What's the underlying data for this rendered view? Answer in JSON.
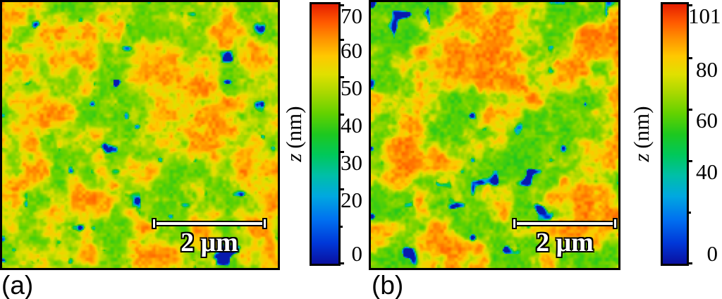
{
  "figure": {
    "background": "#ffffff",
    "frame_color": "#000000"
  },
  "chart_data": [
    {
      "type": "heatmap",
      "panel_label": "(a)",
      "scale_bar": {
        "label": "2 μm"
      },
      "colorbar": {
        "axis_label_z": "z",
        "axis_label_units": "(nm)",
        "legend_position": "right",
        "scale_top_nm": 69.5,
        "zlim_nm": [
          0,
          70
        ],
        "ticks": [
          {
            "value": 70,
            "label": "70"
          },
          {
            "value": 60,
            "label": "60"
          },
          {
            "value": 50,
            "label": "50"
          },
          {
            "value": 40,
            "label": "40"
          },
          {
            "value": 30,
            "label": "30"
          },
          {
            "value": 20,
            "label": "20"
          },
          {
            "value": 10,
            "label": ""
          },
          {
            "value": 0,
            "label": "0"
          }
        ]
      }
    },
    {
      "type": "heatmap",
      "panel_label": "(b)",
      "scale_bar": {
        "label": "2 μm"
      },
      "colorbar": {
        "axis_label_z": "z",
        "axis_label_units": "(nm)",
        "legend_position": "right",
        "scale_top_nm": 101,
        "zlim_nm": [
          0,
          101
        ],
        "ticks": [
          {
            "value": 101,
            "label": "101"
          },
          {
            "value": 80,
            "label": "80"
          },
          {
            "value": 60,
            "label": "60"
          },
          {
            "value": 40,
            "label": "40"
          },
          {
            "value": 20,
            "label": ""
          },
          {
            "value": 0,
            "label": "0"
          }
        ]
      }
    }
  ],
  "colormap_stops": [
    {
      "t": 0.0,
      "color": "#0a10a0"
    },
    {
      "t": 0.08,
      "color": "#0038d8"
    },
    {
      "t": 0.17,
      "color": "#0070f0"
    },
    {
      "t": 0.26,
      "color": "#00a8e0"
    },
    {
      "t": 0.34,
      "color": "#00bfa8"
    },
    {
      "t": 0.42,
      "color": "#00c85a"
    },
    {
      "t": 0.5,
      "color": "#1ec81e"
    },
    {
      "t": 0.58,
      "color": "#64d200"
    },
    {
      "t": 0.66,
      "color": "#aad800"
    },
    {
      "t": 0.73,
      "color": "#e0e000"
    },
    {
      "t": 0.8,
      "color": "#ffc800"
    },
    {
      "t": 0.87,
      "color": "#ff9000"
    },
    {
      "t": 0.93,
      "color": "#ff5a00"
    },
    {
      "t": 1.0,
      "color": "#e61e00"
    }
  ]
}
